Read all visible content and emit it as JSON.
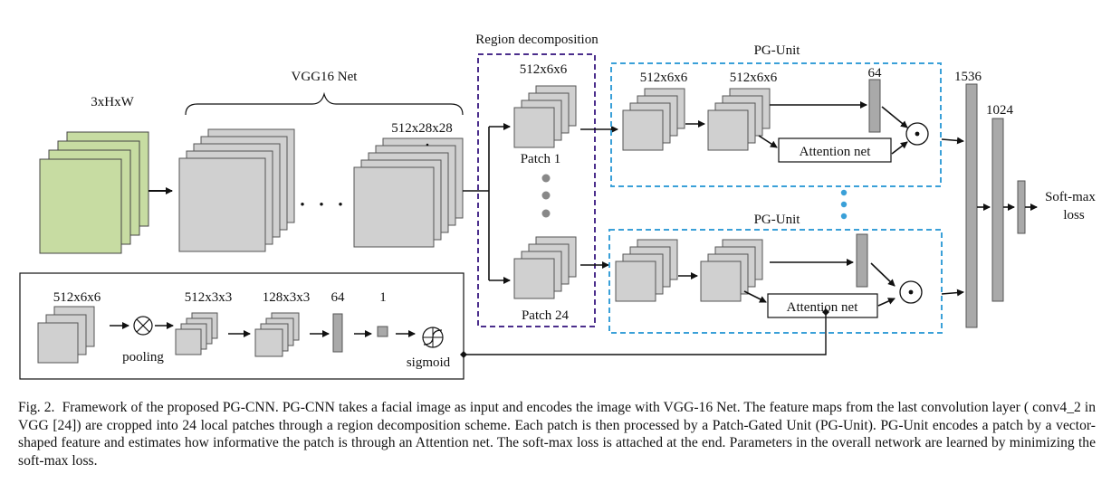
{
  "diagram": {
    "labels": {
      "input_size": "3xHxW",
      "vgg_title": "VGG16 Net",
      "vgg_output": "512x28x28",
      "dots": "• • •",
      "region_title": "Region decomposition",
      "patch_size": "512x6x6",
      "patch1": "Patch 1",
      "patch24": "Patch 24",
      "pgunit_title_top": "PG-Unit",
      "pgunit_title_bottom": "PG-Unit",
      "pg_in_size": "512x6x6",
      "pg_mid_size": "512x6x6",
      "pg_vec_size": "64",
      "attention_top": "Attention net",
      "attention_bottom": "Attention net",
      "fc1": "1536",
      "fc2": "1024",
      "loss": [
        "Soft-max",
        "loss"
      ],
      "att_in": "512x6x6",
      "att_pool_out": "512x3x3",
      "att_conv_out": "128x3x3",
      "att_fc": "64",
      "att_out": "1",
      "pooling": "pooling",
      "sigmoid": "sigmoid"
    },
    "colors": {
      "input_fill": "#c7dca2",
      "map_fill": "#d0d0d0",
      "region_border": "#4b2e8c",
      "pgunit_border": "#3aa0d8",
      "vertical_dots": "#3aa0d8"
    }
  },
  "caption": {
    "fig": "Fig. 2.",
    "text": "Framework of the proposed PG-CNN. PG-CNN takes a facial image as input and encodes the image with VGG-16 Net. The feature maps from the last convolution layer ( conv4_2 in VGG [24]) are cropped into 24 local patches through a region decomposition scheme. Each patch is then processed by a Patch-Gated Unit (PG-Unit). PG-Unit encodes a patch by a vector-shaped feature and estimates how informative the patch is through an Attention net. The soft-max loss is attached at the end. Parameters in the overall network are learned by minimizing the soft-max loss."
  }
}
